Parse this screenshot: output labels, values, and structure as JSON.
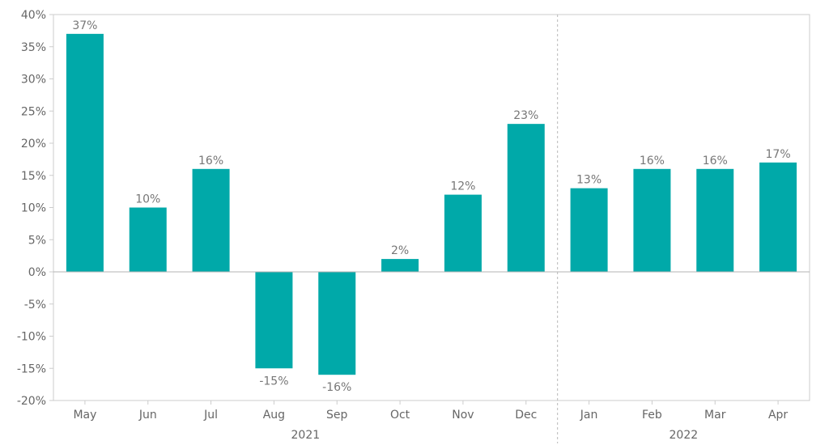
{
  "chart_data": {
    "type": "bar",
    "categories": [
      "May",
      "Jun",
      "Jul",
      "Aug",
      "Sep",
      "Oct",
      "Nov",
      "Dec",
      "Jan",
      "Feb",
      "Mar",
      "Apr"
    ],
    "values": [
      37,
      10,
      16,
      -15,
      -16,
      2,
      12,
      23,
      13,
      16,
      16,
      17
    ],
    "data_labels": [
      "37%",
      "10%",
      "16%",
      "-15%",
      "-16%",
      "2%",
      "12%",
      "23%",
      "13%",
      "16%",
      "16%",
      "17%"
    ],
    "ylim": [
      -20,
      40
    ],
    "yticks": [
      -20,
      -15,
      -10,
      -5,
      0,
      5,
      10,
      15,
      20,
      25,
      30,
      35,
      40
    ],
    "ytick_labels": [
      "-20%",
      "-15%",
      "-10%",
      "-5%",
      "0%",
      "5%",
      "10%",
      "15%",
      "20%",
      "25%",
      "30%",
      "35%",
      "40%"
    ],
    "groups": [
      {
        "label": "2021",
        "first": 0,
        "last": 7
      },
      {
        "label": "2022",
        "first": 8,
        "last": 11
      }
    ],
    "title": "",
    "xlabel": "",
    "ylabel": "",
    "grid": false,
    "legend": "none",
    "bar_color": "#00a9a9"
  }
}
